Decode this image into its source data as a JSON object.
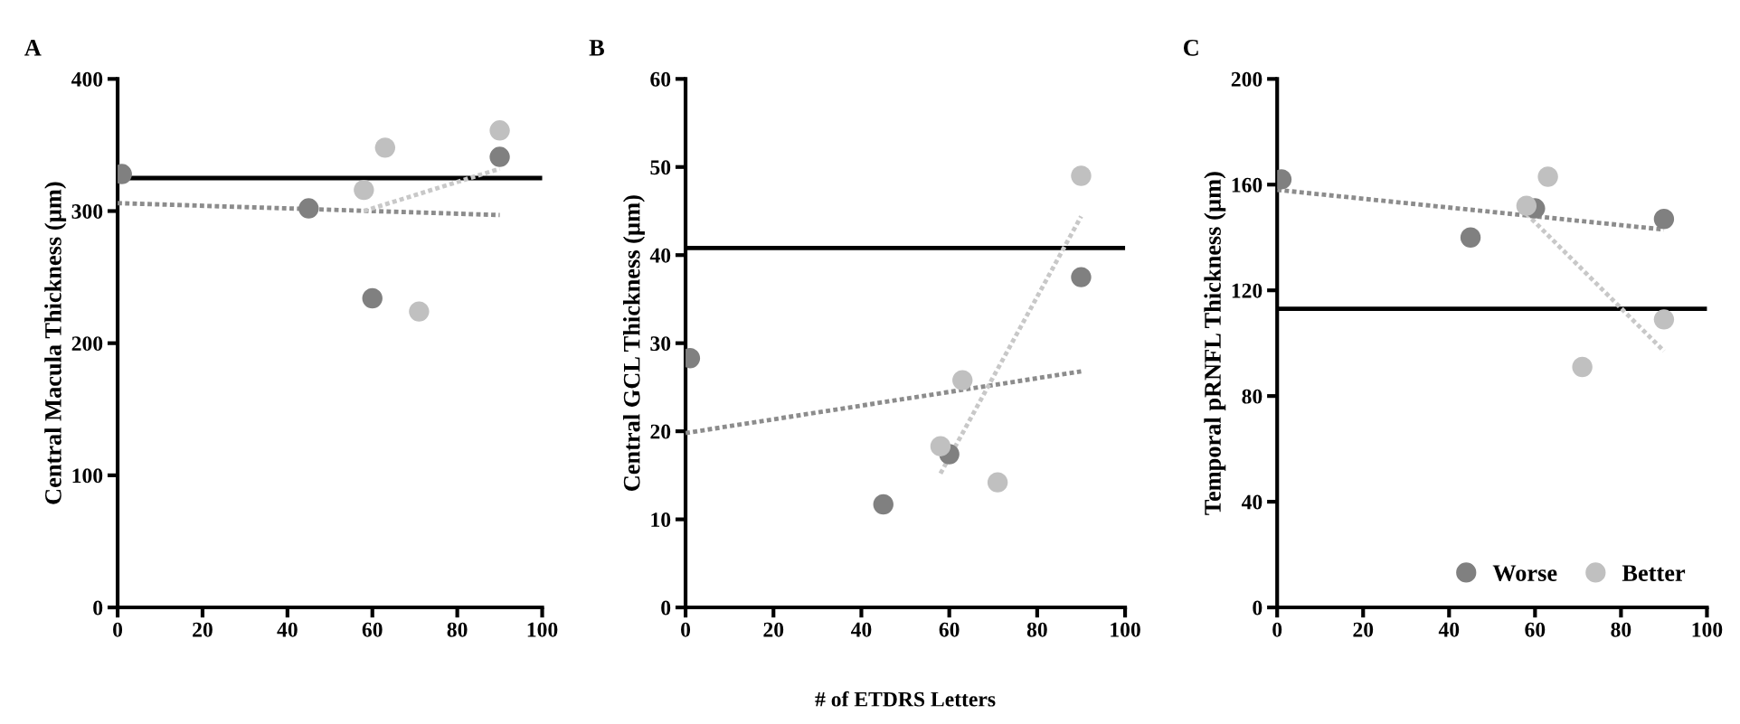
{
  "chart_data": [
    {
      "type": "scatter",
      "title": "A",
      "ylabel": "Central Macula Thickness (µm)",
      "xlim": [
        0,
        100
      ],
      "xticks": [
        0,
        20,
        40,
        60,
        80,
        100
      ],
      "ylim": [
        0,
        400
      ],
      "yticks": [
        0,
        100,
        200,
        300,
        400
      ],
      "marker": "circle",
      "grid": false,
      "legend": false,
      "series": [
        {
          "color": "#808080",
          "x": [
            1,
            45,
            60,
            90
          ],
          "values": [
            328,
            302,
            234,
            341
          ]
        },
        {
          "color": "#c0c0c0",
          "x": [
            58,
            63,
            71,
            90
          ],
          "values": [
            316,
            348,
            224,
            361
          ]
        },
        {
          "type": "line",
          "line_style": "dotted",
          "marker": "none",
          "color": "#8c8c8c",
          "x": [
            0,
            90
          ],
          "values": [
            306,
            297
          ]
        },
        {
          "type": "line",
          "line_style": "dotted",
          "marker": "none",
          "color": "#c8c8c8",
          "x": [
            58,
            90
          ],
          "values": [
            300,
            332
          ]
        }
      ],
      "ref_lines": [
        {
          "axis": "y",
          "value": 325,
          "color": "#000000"
        }
      ]
    },
    {
      "type": "scatter",
      "title": "B",
      "xlabel": "# of ETDRS Letters",
      "ylabel": "Central GCL Thickness (µm)",
      "xlim": [
        0,
        100
      ],
      "xticks": [
        0,
        20,
        40,
        60,
        80,
        100
      ],
      "ylim": [
        0,
        60
      ],
      "yticks": [
        0,
        10,
        20,
        30,
        40,
        50,
        60
      ],
      "marker": "circle",
      "grid": false,
      "legend": false,
      "series": [
        {
          "color": "#808080",
          "x": [
            1,
            45,
            60,
            90
          ],
          "values": [
            28.3,
            11.7,
            17.4,
            37.5
          ]
        },
        {
          "color": "#c0c0c0",
          "x": [
            58,
            63,
            71,
            90
          ],
          "values": [
            18.3,
            25.8,
            14.2,
            49
          ]
        },
        {
          "type": "line",
          "line_style": "dotted",
          "marker": "none",
          "color": "#8c8c8c",
          "x": [
            0,
            90
          ],
          "values": [
            19.8,
            26.8
          ]
        },
        {
          "type": "line",
          "line_style": "dotted",
          "marker": "none",
          "color": "#c8c8c8",
          "x": [
            58,
            90
          ],
          "values": [
            15.2,
            44.4
          ]
        }
      ],
      "ref_lines": [
        {
          "axis": "y",
          "value": 40.8,
          "color": "#000000"
        }
      ]
    },
    {
      "type": "scatter",
      "title": "C",
      "ylabel": "Temporal pRNFL Thickness (µm)",
      "xlim": [
        0,
        100
      ],
      "xticks": [
        0,
        20,
        40,
        60,
        80,
        100
      ],
      "ylim": [
        0,
        200
      ],
      "yticks": [
        0,
        40,
        80,
        120,
        160,
        200
      ],
      "marker": "circle",
      "grid": false,
      "legend": "bottom right",
      "series": [
        {
          "name": "Worse",
          "color": "#808080",
          "x": [
            1,
            45,
            60,
            90
          ],
          "values": [
            162,
            140,
            151,
            147
          ]
        },
        {
          "name": "Better",
          "color": "#c0c0c0",
          "x": [
            58,
            63,
            71,
            90
          ],
          "values": [
            152,
            163,
            91,
            109
          ]
        },
        {
          "type": "line",
          "line_style": "dotted",
          "marker": "none",
          "color": "#8c8c8c",
          "x": [
            0,
            90
          ],
          "values": [
            158,
            143
          ]
        },
        {
          "type": "line",
          "line_style": "dotted",
          "marker": "none",
          "color": "#c8c8c8",
          "x": [
            58,
            90
          ],
          "values": [
            149,
            97
          ]
        }
      ],
      "ref_lines": [
        {
          "axis": "y",
          "value": 113,
          "color": "#000000"
        }
      ]
    }
  ]
}
